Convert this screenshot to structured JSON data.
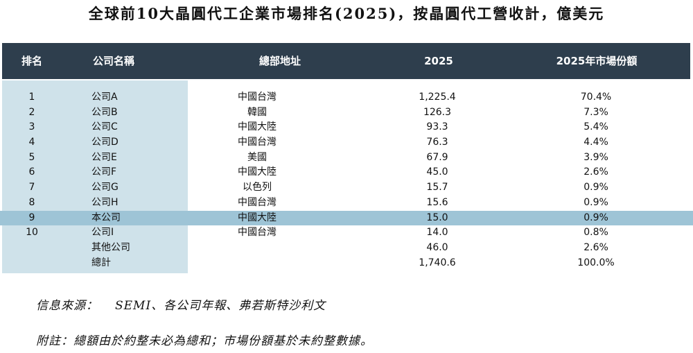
{
  "title": "全球前10大晶圓代工企業市場排名(2025)，按晶圓代工營收計，億美元",
  "headers": {
    "rank": "排名",
    "company": "公司名稱",
    "hq": "總部地址",
    "revenue": "2025",
    "share": "2025年市場份額"
  },
  "rows": [
    {
      "rank": "1",
      "company": "公司A",
      "hq": "中國台灣",
      "revenue": "1,225.4",
      "share": "70.4%"
    },
    {
      "rank": "2",
      "company": "公司B",
      "hq": "韓國",
      "revenue": "126.3",
      "share": "7.3%"
    },
    {
      "rank": "3",
      "company": "公司C",
      "hq": "中國大陸",
      "revenue": "93.3",
      "share": "5.4%"
    },
    {
      "rank": "4",
      "company": "公司D",
      "hq": "中國台灣",
      "revenue": "76.3",
      "share": "4.4%"
    },
    {
      "rank": "5",
      "company": "公司E",
      "hq": "美國",
      "revenue": "67.9",
      "share": "3.9%"
    },
    {
      "rank": "6",
      "company": "公司F",
      "hq": "中國大陸",
      "revenue": "45.0",
      "share": "2.6%"
    },
    {
      "rank": "7",
      "company": "公司G",
      "hq": "以色列",
      "revenue": "15.7",
      "share": "0.9%"
    },
    {
      "rank": "8",
      "company": "公司H",
      "hq": "中國台灣",
      "revenue": "15.6",
      "share": "0.9%"
    },
    {
      "rank": "9",
      "company": "本公司",
      "hq": "中國大陸",
      "revenue": "15.0",
      "share": "0.9%"
    },
    {
      "rank": "10",
      "company": "公司I",
      "hq": "中國台灣",
      "revenue": "14.0",
      "share": "0.8%"
    },
    {
      "rank": "",
      "company": "其他公司",
      "hq": "",
      "revenue": "46.0",
      "share": "2.6%"
    },
    {
      "rank": "",
      "company": "總計",
      "hq": "",
      "revenue": "1,740.6",
      "share": "100.0%"
    }
  ],
  "highlight_row": 8,
  "colors": {
    "header_bg": "#2e3e4d",
    "left_column_bg": "#cfe2ea",
    "highlight_bg": "#9ec4d6"
  },
  "footer": {
    "source_label": "信息來源：",
    "source_text": "SEMI、各公司年報、弗若斯特沙利文",
    "note": "附註：總額由於約整未必為總和；市場份額基於未約整數據。"
  }
}
